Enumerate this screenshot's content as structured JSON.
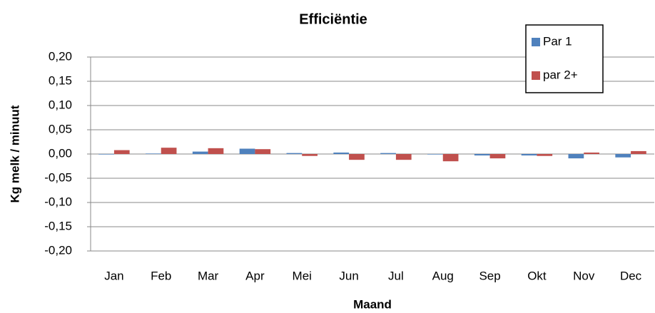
{
  "chart_data": {
    "type": "bar",
    "title": "Efficiëntie",
    "x_label": "Maand",
    "y_label": "Kg melk / minuut",
    "categories": [
      "Jan",
      "Feb",
      "Mar",
      "Apr",
      "Mei",
      "Jun",
      "Jul",
      "Aug",
      "Sep",
      "Okt",
      "Nov",
      "Dec"
    ],
    "series": [
      {
        "name": "Par 1",
        "color": "#4f81bd",
        "values": [
          -0.001,
          0.001,
          0.005,
          0.011,
          0.002,
          0.003,
          0.002,
          -0.001,
          -0.003,
          -0.003,
          -0.009,
          -0.007
        ]
      },
      {
        "name": "par 2+",
        "color": "#c0504d",
        "values": [
          0.008,
          0.013,
          0.012,
          0.01,
          -0.004,
          -0.012,
          -0.012,
          -0.015,
          -0.009,
          -0.004,
          0.003,
          0.006
        ]
      }
    ],
    "ylim": [
      -0.2,
      0.2
    ],
    "yticks": [
      {
        "value": -0.2,
        "label": "-0,20"
      },
      {
        "value": -0.15,
        "label": "-0,15"
      },
      {
        "value": -0.1,
        "label": "-0,10"
      },
      {
        "value": -0.05,
        "label": "-0,05"
      },
      {
        "value": 0,
        "label": "0,00"
      },
      {
        "value": 0.05,
        "label": "0,05"
      },
      {
        "value": 0.1,
        "label": "0,10"
      },
      {
        "value": 0.15,
        "label": "0,15"
      },
      {
        "value": 0.2,
        "label": "0,20"
      }
    ],
    "grid": true,
    "legend": "upper right"
  }
}
